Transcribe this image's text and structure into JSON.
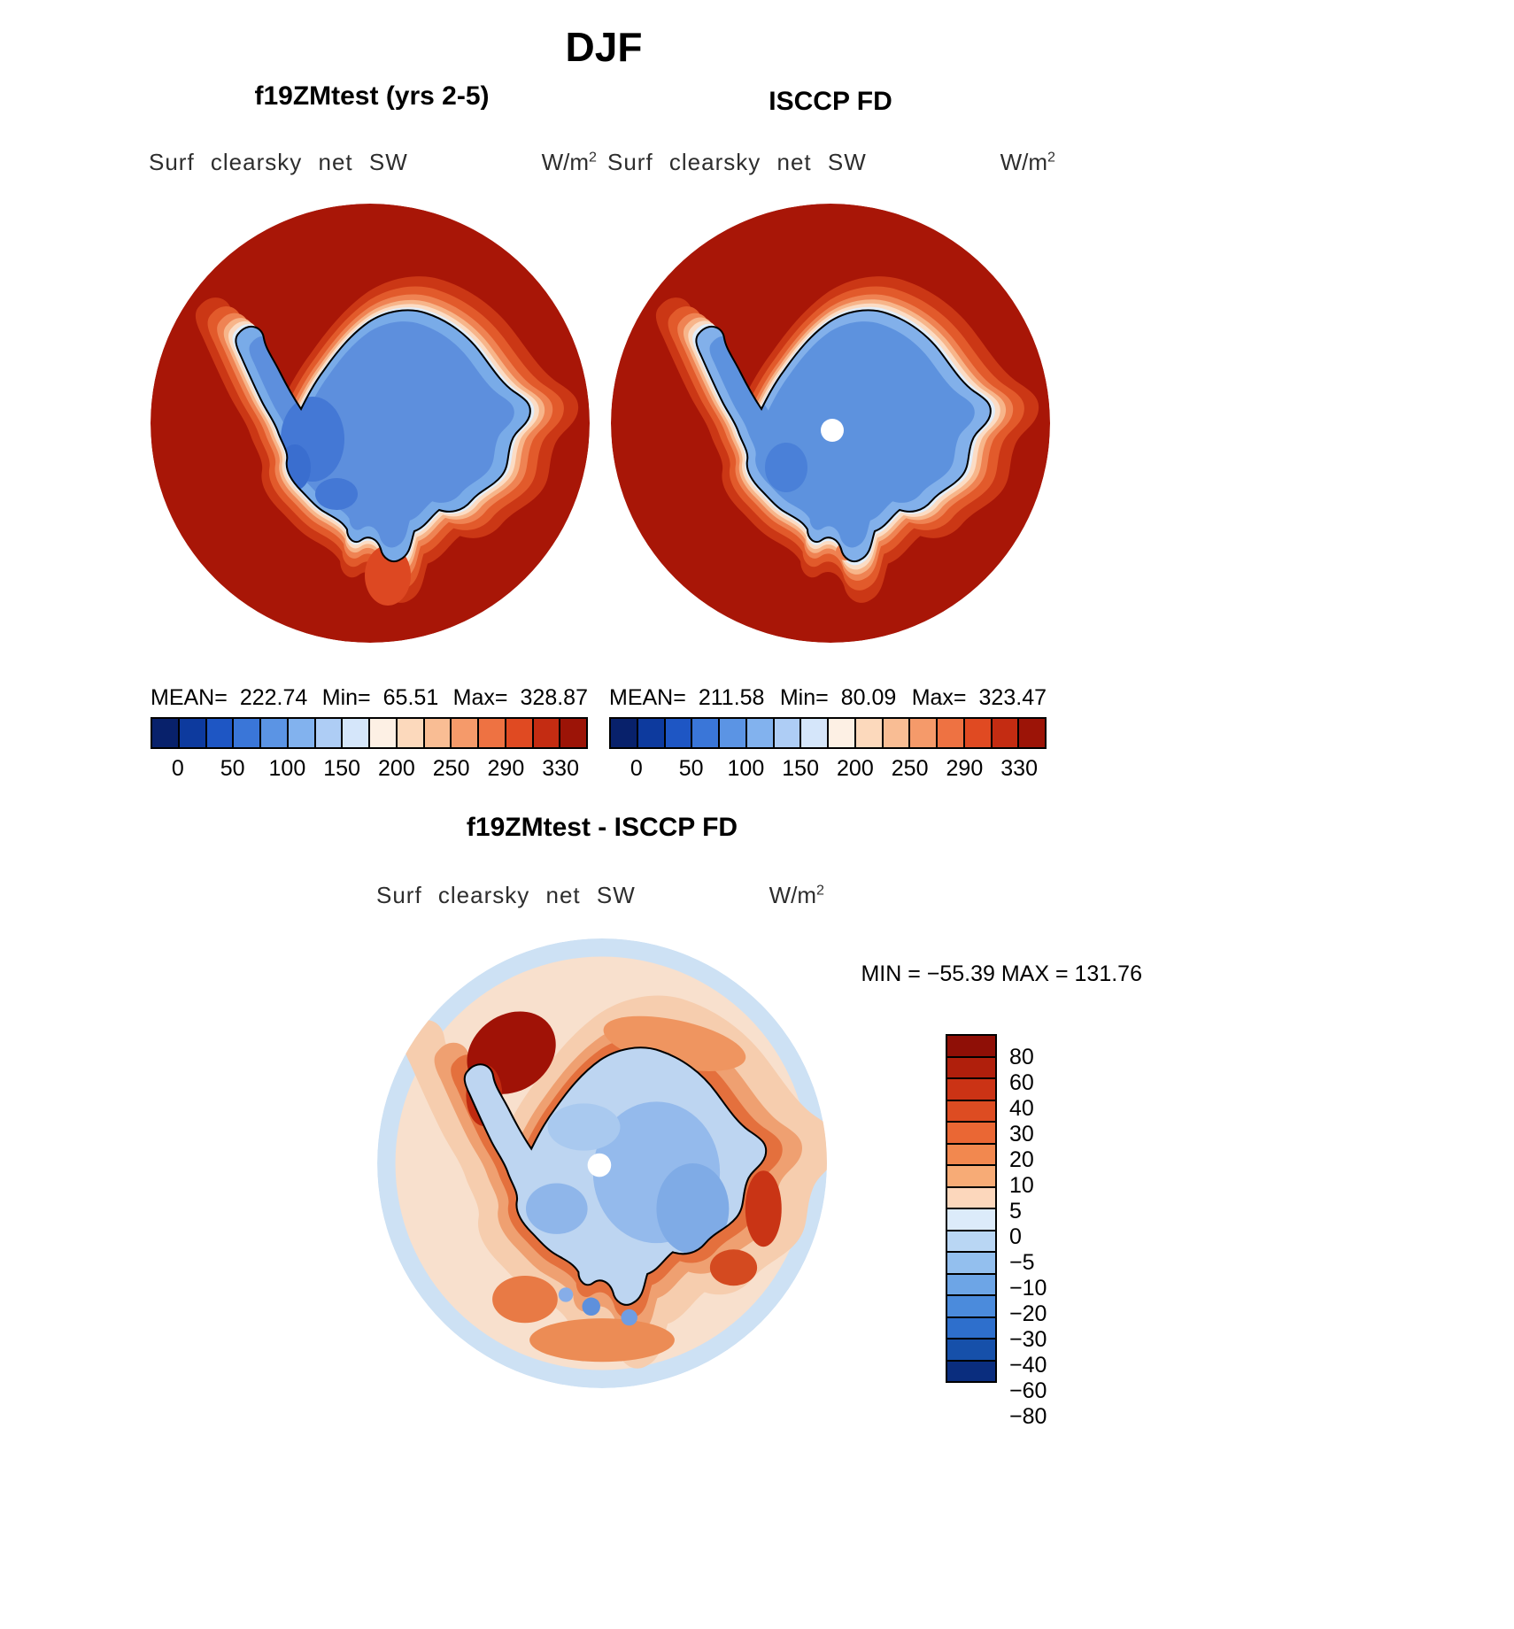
{
  "title": "DJF",
  "panel_left": {
    "title": "f19ZMtest (yrs 2-5)",
    "field_label": "Surf clearsky net SW",
    "units_base": "W/m",
    "units_exp": "2",
    "mean_label": "MEAN=",
    "mean": "222.74",
    "min_label": "Min=",
    "min": "65.51",
    "max_label": "Max=",
    "max": "328.87"
  },
  "panel_right": {
    "title": "ISCCP FD",
    "field_label": "Surf clearsky net SW",
    "units_base": "W/m",
    "units_exp": "2",
    "mean_label": "MEAN=",
    "mean": "211.58",
    "min_label": "Min=",
    "min": "80.09",
    "max_label": "Max=",
    "max": "323.47"
  },
  "ticks": [
    "0",
    "50",
    "100",
    "150",
    "200",
    "250",
    "290",
    "330"
  ],
  "panel_diff": {
    "title": "f19ZMtest - ISCCP FD",
    "field_label": "Surf clearsky net SW",
    "units_base": "W/m",
    "units_exp": "2",
    "minmax": "MIN  =  −55.39   MAX  =  131.76",
    "levels": [
      "80",
      "60",
      "40",
      "30",
      "20",
      "10",
      "5",
      "0",
      "−5",
      "−10",
      "−20",
      "−30",
      "−40",
      "−60",
      "−80"
    ]
  },
  "colors": {
    "scale_colors": [
      "#08216b",
      "#0d3a9e",
      "#1e56c4",
      "#3a76d8",
      "#5b94e4",
      "#82b2ee",
      "#aecdf5",
      "#d5e6fa",
      "#fdf0e4",
      "#fcd9bc",
      "#f9bd94",
      "#f59a6a",
      "#ee7242",
      "#e04a22",
      "#c42c12",
      "#9c1407"
    ],
    "diff_colors": [
      "#8f0f06",
      "#b01f0c",
      "#cb3315",
      "#dd4c22",
      "#ea6734",
      "#f2884f",
      "#f7ab76",
      "#fcd7bc",
      "#dcebfa",
      "#b9d6f4",
      "#93bfee",
      "#6da5e6",
      "#4b8bdc",
      "#2e6fcc",
      "#1650aa",
      "#0a2d7e"
    ],
    "ocean_high": "#a81607",
    "continent_blue": "#79abe8",
    "coastline": "#000000"
  },
  "chart_data": [
    {
      "type": "heatmap",
      "subtype": "polar_stereographic_contour_map",
      "title": "f19ZMtest (yrs 2-5)",
      "season": "DJF",
      "variable": "Surf clearsky net SW",
      "units": "W/m^2",
      "region": "Antarctica (Southern Hemisphere polar view)",
      "stats": {
        "mean": 222.74,
        "min": 65.51,
        "max": 328.87
      },
      "colorbar": {
        "orientation": "horizontal",
        "n_segments": 16,
        "tick_values": [
          0,
          50,
          100,
          150,
          200,
          250,
          290,
          330
        ]
      }
    },
    {
      "type": "heatmap",
      "subtype": "polar_stereographic_contour_map",
      "title": "ISCCP FD",
      "season": "DJF",
      "variable": "Surf clearsky net SW",
      "units": "W/m^2",
      "region": "Antarctica (Southern Hemisphere polar view)",
      "stats": {
        "mean": 211.58,
        "min": 80.09,
        "max": 323.47
      },
      "colorbar": {
        "orientation": "horizontal",
        "n_segments": 16,
        "tick_values": [
          0,
          50,
          100,
          150,
          200,
          250,
          290,
          330
        ]
      },
      "notes": "white dot at pole indicates missing data"
    },
    {
      "type": "heatmap",
      "subtype": "polar_stereographic_contour_map_difference",
      "title": "f19ZMtest - ISCCP FD",
      "season": "DJF",
      "variable": "Surf clearsky net SW difference",
      "units": "W/m^2",
      "stats": {
        "min": -55.39,
        "max": 131.76
      },
      "colorbar": {
        "orientation": "vertical",
        "n_segments": 16,
        "level_values": [
          80,
          60,
          40,
          30,
          20,
          10,
          5,
          0,
          -5,
          -10,
          -20,
          -30,
          -40,
          -60,
          -80
        ]
      }
    }
  ]
}
